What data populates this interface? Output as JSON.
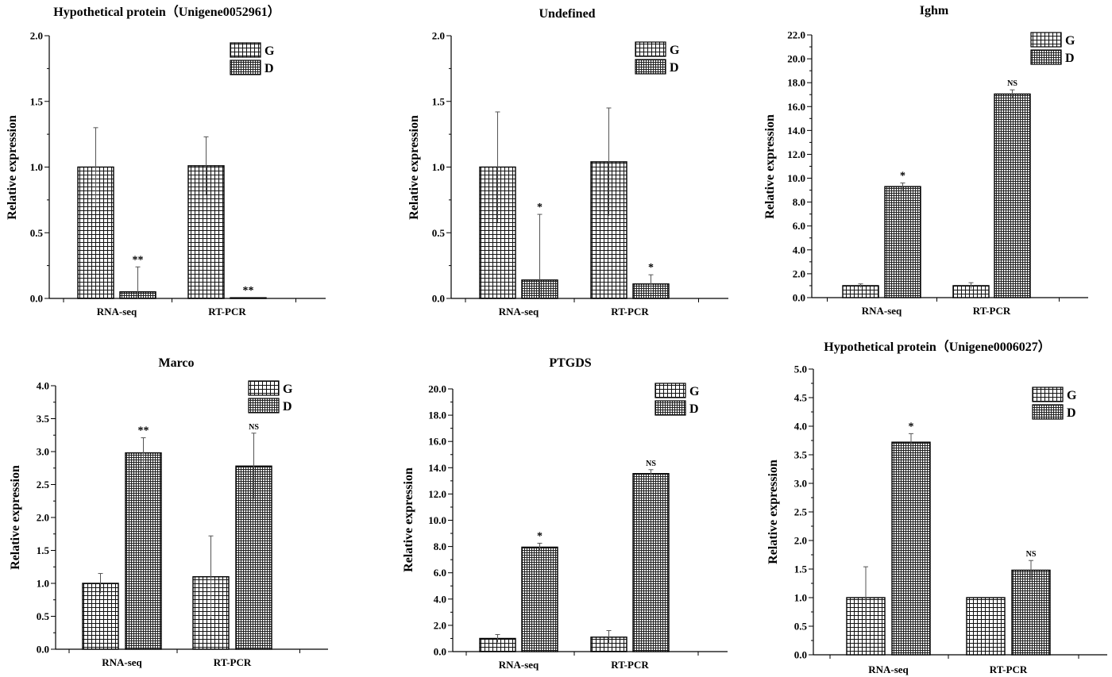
{
  "legend": {
    "g_label": "G",
    "d_label": "D"
  },
  "chart_data": [
    {
      "type": "bar",
      "title": "Hypothetical protein（Unigene0052961）",
      "ylabel": "Relative expression",
      "categories": [
        "RNA-seq",
        "RT-PCR"
      ],
      "ylim": [
        0,
        2.0
      ],
      "yticks": [
        "0.0",
        "0.5",
        "1.0",
        "1.5",
        "2.0"
      ],
      "legend_position": "top-center",
      "series": [
        {
          "name": "G",
          "values": [
            1.0,
            1.01
          ],
          "errors": [
            0.3,
            0.22
          ]
        },
        {
          "name": "D",
          "values": [
            0.05,
            0.005
          ],
          "errors": [
            0.19,
            0.0
          ]
        }
      ],
      "annotations": [
        [
          "",
          "**"
        ],
        [
          "",
          "**"
        ]
      ]
    },
    {
      "type": "bar",
      "title": "Undefined",
      "ylabel": "Relative expression",
      "categories": [
        "RNA-seq",
        "RT-PCR"
      ],
      "ylim": [
        0,
        2.0
      ],
      "yticks": [
        "0.0",
        "0.5",
        "1.0",
        "1.5",
        "2.0"
      ],
      "legend_position": "top-center",
      "series": [
        {
          "name": "G",
          "values": [
            1.0,
            1.04
          ],
          "errors": [
            0.42,
            0.41
          ]
        },
        {
          "name": "D",
          "values": [
            0.14,
            0.11
          ],
          "errors": [
            0.5,
            0.07
          ]
        }
      ],
      "annotations": [
        [
          "",
          "*"
        ],
        [
          "",
          "*"
        ]
      ]
    },
    {
      "type": "bar",
      "title": "Ighm",
      "ylabel": "Relative expression",
      "categories": [
        "RNA-seq",
        "RT-PCR"
      ],
      "ylim": [
        0,
        22.0
      ],
      "yticks": [
        "0.0",
        "2.0",
        "4.0",
        "6.0",
        "8.0",
        "10.0",
        "12.0",
        "14.0",
        "16.0",
        "18.0",
        "20.0",
        "22.0"
      ],
      "legend_position": "top-right",
      "series": [
        {
          "name": "G",
          "values": [
            1.0,
            1.0
          ],
          "errors": [
            0.15,
            0.25
          ]
        },
        {
          "name": "D",
          "values": [
            9.3,
            17.05
          ],
          "errors": [
            0.3,
            0.35
          ]
        }
      ],
      "annotations": [
        [
          "",
          "*"
        ],
        [
          "",
          "NS"
        ]
      ]
    },
    {
      "type": "bar",
      "title": "Marco",
      "ylabel": "Relative expression",
      "categories": [
        "RNA-seq",
        "RT-PCR"
      ],
      "ylim": [
        0,
        4.0
      ],
      "yticks": [
        "0.0",
        "0.5",
        "1.0",
        "1.5",
        "2.0",
        "2.5",
        "3.0",
        "3.5",
        "4.0"
      ],
      "legend_position": "top-right",
      "series": [
        {
          "name": "G",
          "values": [
            1.0,
            1.1
          ],
          "errors": [
            0.15,
            0.62
          ]
        },
        {
          "name": "D",
          "values": [
            2.98,
            2.78
          ],
          "errors": [
            0.23,
            0.5
          ]
        }
      ],
      "annotations": [
        [
          "",
          "**"
        ],
        [
          "",
          "NS"
        ]
      ]
    },
    {
      "type": "bar",
      "title": "PTGDS",
      "ylabel": "Relative expression",
      "categories": [
        "RNA-seq",
        "RT-PCR"
      ],
      "ylim": [
        0,
        20.0
      ],
      "yticks": [
        "0.0",
        "2.0",
        "4.0",
        "6.0",
        "8.0",
        "10.0",
        "12.0",
        "14.0",
        "16.0",
        "18.0",
        "20.0"
      ],
      "legend_position": "top-right",
      "series": [
        {
          "name": "G",
          "values": [
            1.0,
            1.1
          ],
          "errors": [
            0.3,
            0.5
          ]
        },
        {
          "name": "D",
          "values": [
            7.95,
            13.55
          ],
          "errors": [
            0.3,
            0.3
          ]
        }
      ],
      "annotations": [
        [
          "",
          "*"
        ],
        [
          "",
          "NS"
        ]
      ]
    },
    {
      "type": "bar",
      "title": "Hypothetical protein（Unigene0006027）",
      "ylabel": "Relative expression",
      "categories": [
        "RNA-seq",
        "RT-PCR"
      ],
      "ylim": [
        0,
        5.0
      ],
      "yticks": [
        "0.0",
        "0.5",
        "1.0",
        "1.5",
        "2.0",
        "2.5",
        "3.0",
        "3.5",
        "4.0",
        "4.5",
        "5.0"
      ],
      "legend_position": "top-right",
      "series": [
        {
          "name": "G",
          "values": [
            1.0,
            1.0
          ],
          "errors": [
            0.54,
            0.0
          ]
        },
        {
          "name": "D",
          "values": [
            3.72,
            1.48
          ],
          "errors": [
            0.15,
            0.17
          ]
        }
      ],
      "annotations": [
        [
          "",
          "*"
        ],
        [
          "",
          "NS"
        ]
      ]
    }
  ]
}
